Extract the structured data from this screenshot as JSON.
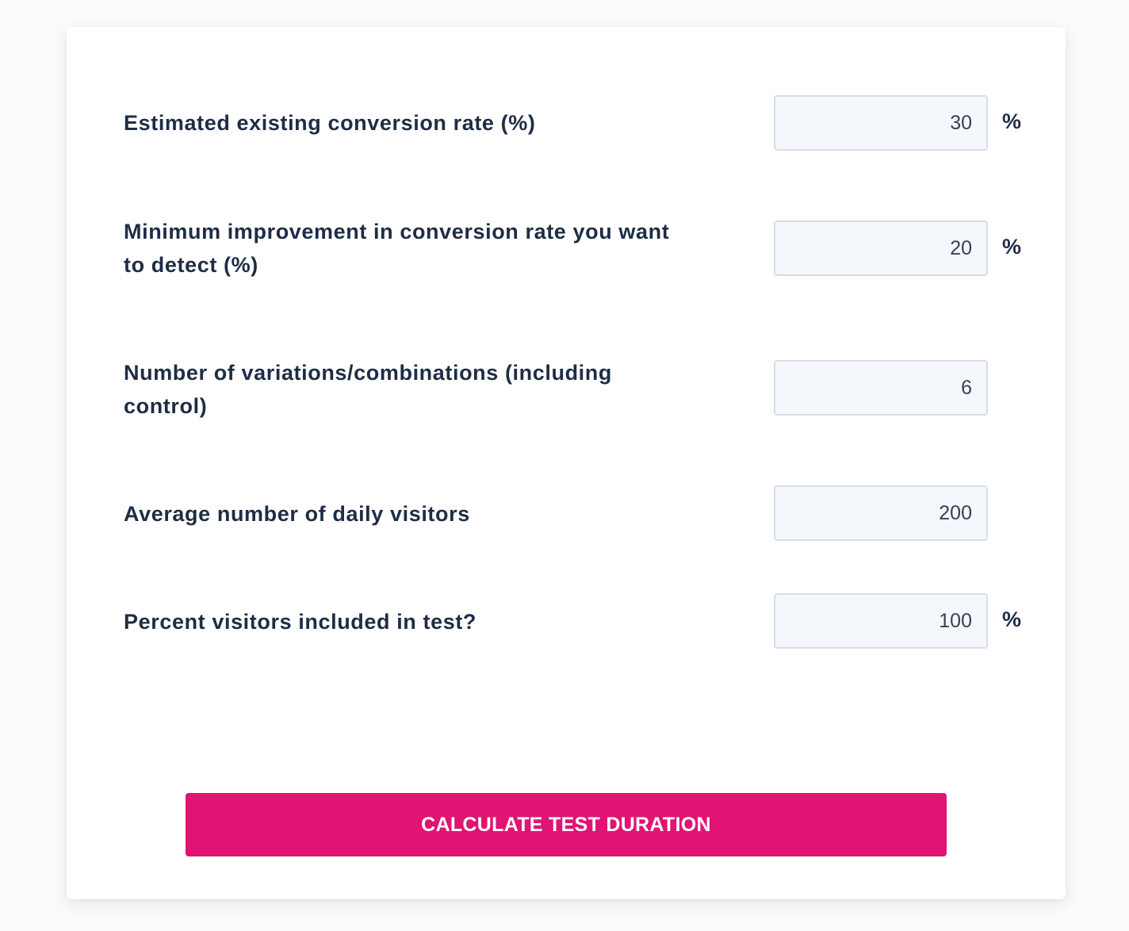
{
  "form": {
    "fields": [
      {
        "label": "Estimated existing conversion rate (%)",
        "value": "30",
        "unit": "%"
      },
      {
        "label": "Minimum improvement in conversion rate you want to detect (%)",
        "value": "20",
        "unit": "%"
      },
      {
        "label": "Number of variations/combinations (including control)",
        "value": "6",
        "unit": ""
      },
      {
        "label": "Average number of daily visitors",
        "value": "200",
        "unit": ""
      },
      {
        "label": "Percent visitors included in test?",
        "value": "100",
        "unit": "%"
      }
    ],
    "submit_label": "CALCULATE TEST DURATION"
  },
  "colors": {
    "accent": "#e01473",
    "text": "#1e2d45",
    "input_bg": "#f4f7fb",
    "input_border": "#d9dee5"
  }
}
